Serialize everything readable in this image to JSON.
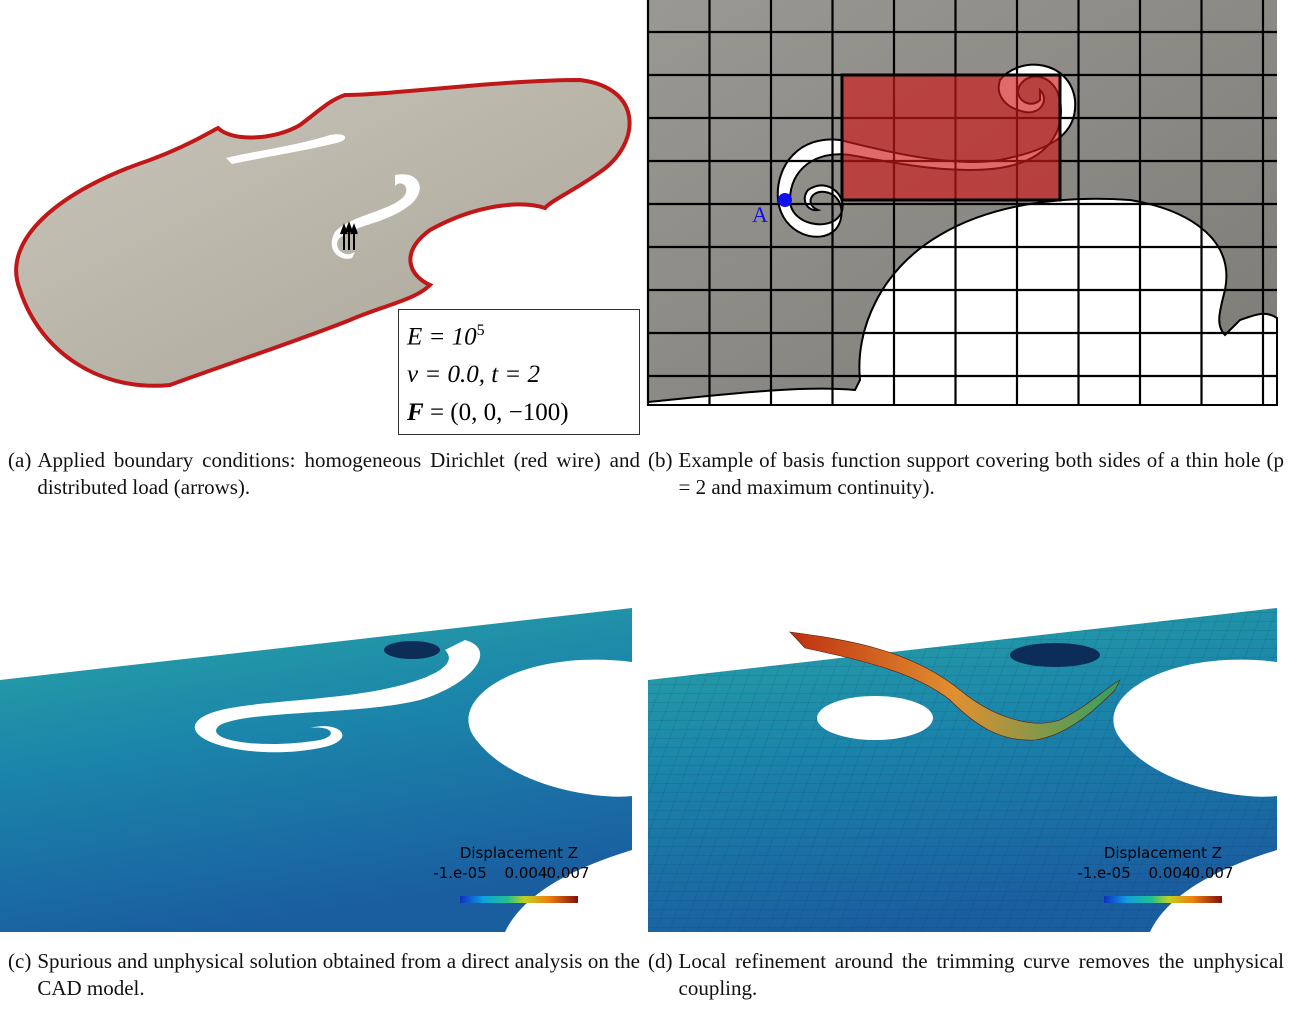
{
  "panels": [
    {
      "box": [
        {
          "lhs": "E = 10",
          "sup": "5"
        },
        {
          "text": "ν = 0.0, t = 2"
        },
        {
          "bold": "F",
          "text": " = (0, 0, −100)"
        }
      ],
      "caption": {
        "label": "(a)",
        "text": "Applied boundary conditions: homogeneous Dirichlet (red wire) and distributed load (arrows)."
      }
    },
    {
      "point_label": "A",
      "caption": {
        "label": "(b)",
        "text": "Example of basis function support covering both sides of a thin hole (p = 2 and maximum continuity)."
      }
    },
    {
      "colorbar": {
        "title": "Displacement Z",
        "ticks": [
          "-1.e-05",
          "0.004",
          "0.007"
        ]
      },
      "caption": {
        "label": "(c)",
        "text": "Spurious and unphysical solution obtained from a direct analysis on the CAD model."
      }
    },
    {
      "colorbar": {
        "title": "Displacement Z",
        "ticks": [
          "-1.e-05",
          "0.004",
          "0.007"
        ]
      },
      "caption": {
        "label": "(d)",
        "text": "Local refinement around the trimming curve removes the unphysical coupling."
      }
    }
  ]
}
